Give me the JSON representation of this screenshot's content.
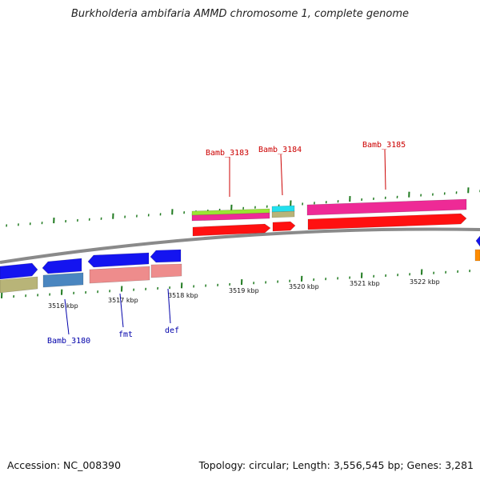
{
  "title": "Burkholderia ambifaria AMMD chromosome 1, complete genome",
  "footer": {
    "accession": "Accession: NC_008390",
    "topology": "Topology: circular; Length: 3,556,545 bp; Genes: 3,281"
  },
  "scale_labels": [
    "3516 kbp",
    "3517 kbp",
    "3518 kbp",
    "3519 kbp",
    "3520 kbp",
    "3521 kbp",
    "3522 kbp"
  ],
  "gene_labels": {
    "forward": [
      "Bamb_3183",
      "Bamb_3184",
      "Bamb_3185"
    ],
    "reverse": [
      "Bamb_3180",
      "fmt",
      "def"
    ]
  },
  "colors": {
    "backbone": "#8a8a8a",
    "tick": "#1f7a1f",
    "forward_label": "#cc0000",
    "reverse_label": "#0000aa",
    "red": "#ff1010",
    "magenta": "#ee2a96",
    "lime": "#99e633",
    "cyan": "#22e0ee",
    "tan": "#b8b478",
    "blue": "#1414f0",
    "steelblue": "#4a86c0",
    "salmon": "#ee8c8c",
    "orange": "#ff8c00"
  }
}
